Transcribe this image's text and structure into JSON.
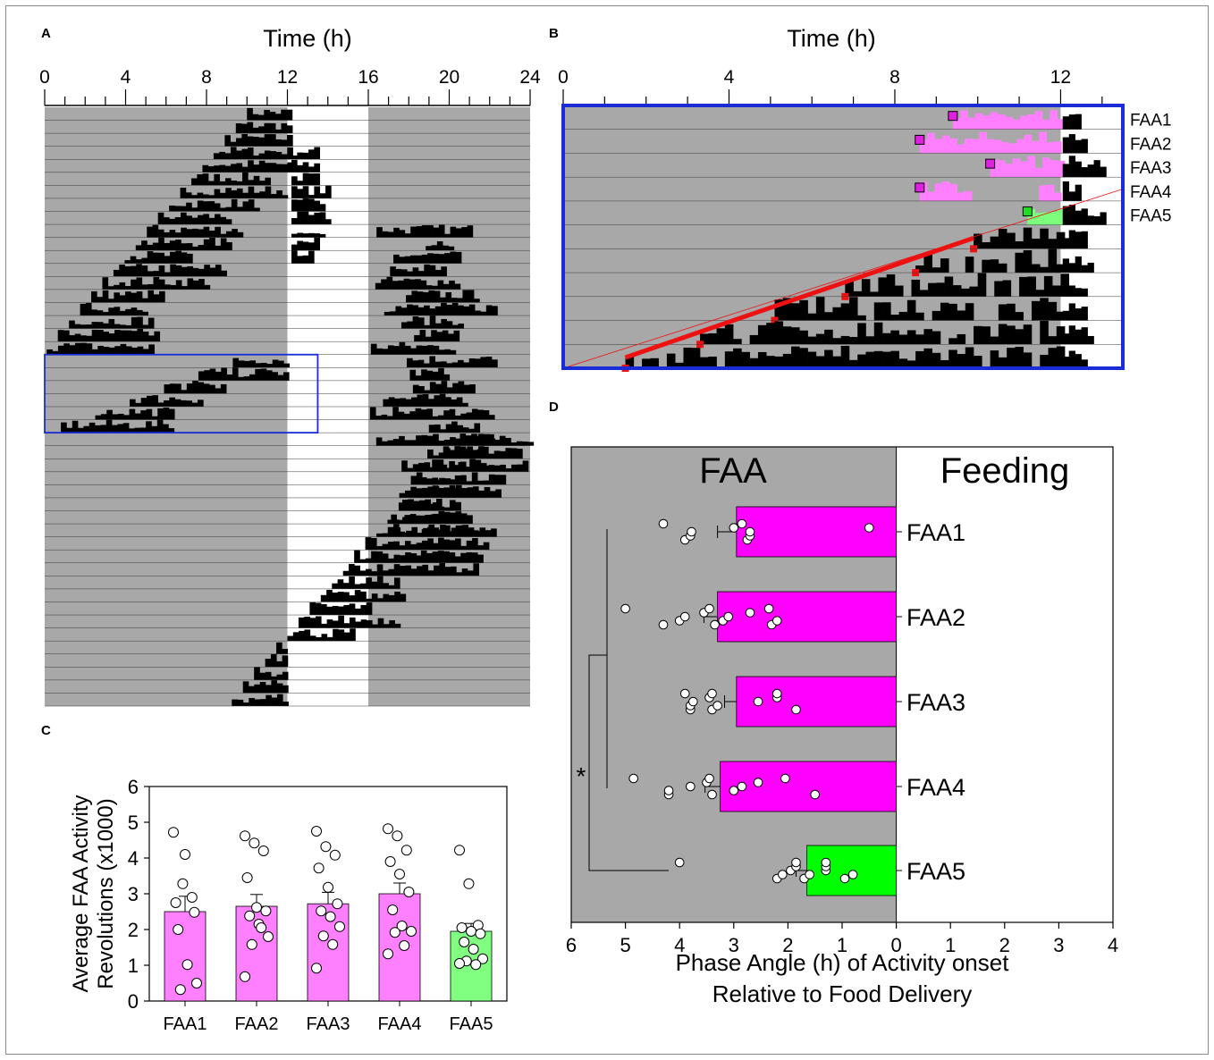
{
  "panels": {
    "A": {
      "label": "A",
      "title": "Time (h)",
      "tick_labels": [
        "0",
        "4",
        "8",
        "12",
        "16",
        "20",
        "24"
      ]
    },
    "B": {
      "label": "B",
      "title": "Time (h)",
      "tick_labels": [
        "0",
        "4",
        "8",
        "12"
      ],
      "row_labels": [
        "FAA1",
        "FAA2",
        "FAA3",
        "FAA4",
        "FAA5"
      ]
    },
    "C": {
      "label": "C"
    },
    "D": {
      "label": "D",
      "region_faa": "FAA",
      "region_feeding": "Feeding",
      "sig_marker": "*"
    }
  },
  "chart_data": [
    {
      "id": "A",
      "type": "actogram",
      "xlabel": "Time (h)",
      "xlim": [
        0,
        24
      ],
      "xticks": [
        0,
        4,
        8,
        12,
        16,
        20,
        24
      ],
      "days": 46,
      "light_phase_hours": [
        12,
        16
      ],
      "highlight_box_hours": [
        0,
        13.5
      ],
      "highlight_box_days": [
        19,
        24
      ]
    },
    {
      "id": "B",
      "type": "actogram",
      "xlabel": "Time (h)",
      "xlim": [
        0,
        13.5
      ],
      "xticks": [
        0,
        4,
        8,
        12
      ],
      "rows": [
        "FAA1",
        "FAA2",
        "FAA3",
        "FAA4",
        "FAA5"
      ],
      "onset_hours_upper": [
        9.4,
        8.6,
        10.3,
        8.6,
        11.2
      ],
      "activity_onset_fit": [
        1.5,
        3.3,
        5.1,
        6.8,
        8.5,
        9.9
      ]
    },
    {
      "id": "C",
      "type": "bar",
      "ylabel": "Average FAA Activity Revolutions (x1000)",
      "ylim": [
        0,
        6
      ],
      "yticks": [
        0,
        1,
        2,
        3,
        4,
        5,
        6
      ],
      "categories": [
        "FAA1",
        "FAA2",
        "FAA3",
        "FAA4",
        "FAA5"
      ],
      "values": [
        2.5,
        2.65,
        2.72,
        3.0,
        1.95
      ],
      "errors": [
        0.43,
        0.33,
        0.32,
        0.3,
        0.22
      ],
      "colors": [
        "#ff80ff",
        "#ff80ff",
        "#ff80ff",
        "#ff80ff",
        "#80ff80"
      ],
      "points": [
        [
          4.72,
          3.28,
          2.9,
          2.75,
          4.1,
          2.48,
          2.0,
          1.02,
          0.5,
          0.32
        ],
        [
          4.62,
          4.42,
          4.2,
          3.45,
          2.62,
          2.52,
          2.38,
          2.15,
          1.8,
          1.58,
          2.05,
          0.68
        ],
        [
          4.75,
          4.32,
          4.08,
          3.72,
          3.18,
          2.72,
          2.52,
          2.36,
          2.08,
          1.82,
          1.58,
          0.92
        ],
        [
          4.82,
          4.62,
          4.22,
          3.9,
          3.55,
          3.05,
          2.55,
          2.1,
          1.95,
          1.92,
          1.55,
          1.32
        ],
        [
          4.22,
          3.28,
          2.12,
          2.05,
          1.95,
          1.88,
          1.65,
          1.45,
          1.18,
          1.12,
          1.02,
          1.05
        ]
      ]
    },
    {
      "id": "D",
      "type": "bar",
      "orientation": "horizontal",
      "xlabel": "Phase Angle (h) of Activity onset Relative to Food Delivery",
      "xlabel_lines": [
        "Phase Angle (h) of Activity onset",
        "Relative to Food Delivery"
      ],
      "xlim": [
        6,
        -4
      ],
      "xtick_labels": [
        "6",
        "5",
        "4",
        "3",
        "2",
        "1",
        "0",
        "1",
        "2",
        "3",
        "4"
      ],
      "categories": [
        "FAA1",
        "FAA2",
        "FAA3",
        "FAA4",
        "FAA5"
      ],
      "values": [
        2.95,
        3.3,
        2.95,
        3.25,
        1.65
      ],
      "errors": [
        0.35,
        0.25,
        0.22,
        0.28,
        0.2
      ],
      "colors": [
        "#ff00ff",
        "#ff00ff",
        "#ff00ff",
        "#ff00ff",
        "#00ff00"
      ],
      "points": [
        [
          4.3,
          3.9,
          3.8,
          3.78,
          3.0,
          2.85,
          2.75,
          2.7,
          2.7,
          0.5
        ],
        [
          5.0,
          4.3,
          4.0,
          3.9,
          3.55,
          3.45,
          3.35,
          3.2,
          3.1,
          2.7,
          2.35,
          2.3,
          2.2
        ],
        [
          3.9,
          3.8,
          3.8,
          3.75,
          3.45,
          3.4,
          3.4,
          3.3,
          2.55,
          2.2,
          2.2,
          1.85
        ],
        [
          4.85,
          4.2,
          4.2,
          3.8,
          3.5,
          3.45,
          3.4,
          3.0,
          2.85,
          2.55,
          2.05,
          1.5
        ],
        [
          4.0,
          2.2,
          2.1,
          1.95,
          1.85,
          1.85,
          1.7,
          1.6,
          1.3,
          1.3,
          1.3,
          0.95,
          0.8
        ]
      ],
      "significance": {
        "label": "*",
        "groups": [
          "FAA1-FAA4",
          "FAA5"
        ]
      }
    }
  ]
}
